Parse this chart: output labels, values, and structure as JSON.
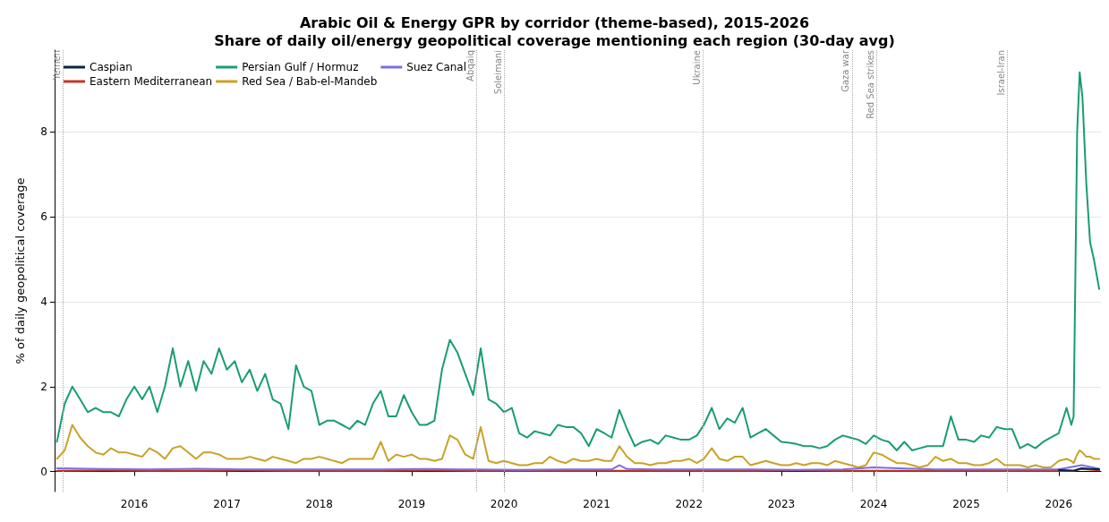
{
  "chart_data": {
    "type": "line",
    "title": "Arabic Oil & Energy GPR by corridor (theme-based), 2015-2026",
    "subtitle": "Share of daily oil/energy geopolitical coverage mentioning each region (30-day avg)",
    "ylabel": "% of daily geopolitical coverage",
    "x": [
      "2015-03",
      "2015-04",
      "2015-05",
      "2015-06",
      "2015-07",
      "2015-08",
      "2015-09",
      "2015-10",
      "2015-11",
      "2015-12",
      "2016-01",
      "2016-02",
      "2016-03",
      "2016-04",
      "2016-05",
      "2016-06",
      "2016-07",
      "2016-08",
      "2016-09",
      "2016-10",
      "2016-11",
      "2016-12",
      "2017-01",
      "2017-02",
      "2017-03",
      "2017-04",
      "2017-05",
      "2017-06",
      "2017-07",
      "2017-08",
      "2017-09",
      "2017-10",
      "2017-11",
      "2017-12",
      "2018-01",
      "2018-02",
      "2018-03",
      "2018-04",
      "2018-05",
      "2018-06",
      "2018-07",
      "2018-08",
      "2018-09",
      "2018-10",
      "2018-11",
      "2018-12",
      "2019-01",
      "2019-02",
      "2019-03",
      "2019-04",
      "2019-05",
      "2019-06",
      "2019-07",
      "2019-08",
      "2019-09",
      "2019-10",
      "2019-11",
      "2019-12",
      "2020-01",
      "2020-02",
      "2020-03",
      "2020-04",
      "2020-05",
      "2020-06",
      "2020-07",
      "2020-08",
      "2020-09",
      "2020-10",
      "2020-11",
      "2020-12",
      "2021-01",
      "2021-02",
      "2021-03",
      "2021-04",
      "2021-05",
      "2021-06",
      "2021-07",
      "2021-08",
      "2021-09",
      "2021-10",
      "2021-11",
      "2021-12",
      "2022-01",
      "2022-02",
      "2022-03",
      "2022-04",
      "2022-05",
      "2022-06",
      "2022-07",
      "2022-08",
      "2022-09",
      "2022-10",
      "2022-11",
      "2022-12",
      "2023-01",
      "2023-02",
      "2023-03",
      "2023-04",
      "2023-05",
      "2023-06",
      "2023-07",
      "2023-08",
      "2023-09",
      "2023-10",
      "2023-11",
      "2023-12",
      "2024-01",
      "2024-02",
      "2024-03",
      "2024-04",
      "2024-05",
      "2024-06",
      "2024-07",
      "2024-08",
      "2024-09",
      "2024-10",
      "2024-11",
      "2024-12",
      "2025-01",
      "2025-02",
      "2025-03",
      "2025-04",
      "2025-05",
      "2025-06",
      "2025-07",
      "2025-08",
      "2025-09",
      "2025-10",
      "2025-11",
      "2025-12",
      "2026-01",
      "2026-02-01",
      "2026-02-20",
      "2026-03-01",
      "2026-03-15",
      "2026-03-25",
      "2026-04-05",
      "2026-04-20",
      "2026-05-05",
      "2026-05-20",
      "2026-06-10"
    ],
    "xlim": [
      "2015-02-20",
      "2026-06-17"
    ],
    "xticks": [
      "2016",
      "2017",
      "2018",
      "2019",
      "2020",
      "2021",
      "2022",
      "2023",
      "2024",
      "2025",
      "2026"
    ],
    "ylim": [
      -0.47,
      9.92
    ],
    "yticks": [
      0,
      2,
      4,
      6,
      8
    ],
    "grid": "y",
    "legend": "top left",
    "marker": "none",
    "line_style": "solid",
    "series": [
      {
        "name": "Caspian",
        "color": "#0b2545",
        "x": [
          "2026-01",
          "2026-03",
          "2026-04",
          "2026-06-10"
        ],
        "values": [
          0.04,
          0.02,
          0.08,
          0.05
        ]
      },
      {
        "name": "Eastern Mediterranean",
        "color": "#c0392b",
        "x": [
          "2015-03",
          "2015-09",
          "2016-03",
          "2016-09",
          "2017-03",
          "2017-09",
          "2018-03",
          "2018-09",
          "2019-03",
          "2019-09",
          "2020-03",
          "2020-09",
          "2021-03",
          "2021-09",
          "2022-03",
          "2022-09",
          "2023-03",
          "2023-09",
          "2024-03",
          "2024-09",
          "2025-03",
          "2025-09",
          "2026-01",
          "2026-03",
          "2026-04",
          "2026-06-10"
        ],
        "values": [
          0.02,
          0.03,
          0.02,
          0.02,
          0.03,
          0.02,
          0.02,
          0.02,
          0.03,
          0.02,
          0.02,
          0.02,
          0.02,
          0.02,
          0.02,
          0.02,
          0.03,
          0.02,
          0.02,
          0.02,
          0.02,
          0.02,
          0.02,
          0.02,
          0.06,
          0.03
        ]
      },
      {
        "name": "Persian Gulf / Hormuz",
        "color": "#1a9c73",
        "values": [
          0.7,
          1.6,
          2.0,
          1.7,
          1.4,
          1.5,
          1.4,
          1.4,
          1.3,
          1.7,
          2.0,
          1.7,
          2.0,
          1.4,
          2.0,
          2.9,
          2.0,
          2.6,
          1.9,
          2.6,
          2.3,
          2.9,
          2.4,
          2.6,
          2.1,
          2.4,
          1.9,
          2.3,
          1.7,
          1.6,
          1.0,
          2.5,
          2.0,
          1.9,
          1.1,
          1.2,
          1.2,
          1.1,
          1.0,
          1.2,
          1.1,
          1.6,
          1.9,
          1.3,
          1.3,
          1.8,
          1.4,
          1.1,
          1.1,
          1.2,
          2.4,
          3.1,
          2.8,
          2.3,
          1.8,
          2.9,
          1.7,
          1.6,
          1.4,
          1.5,
          0.9,
          0.8,
          0.95,
          0.9,
          0.85,
          1.1,
          1.05,
          1.05,
          0.9,
          0.6,
          1.0,
          0.9,
          0.8,
          1.45,
          1.0,
          0.6,
          0.7,
          0.75,
          0.65,
          0.85,
          0.8,
          0.75,
          0.75,
          0.85,
          1.1,
          1.5,
          1.0,
          1.25,
          1.15,
          1.5,
          0.8,
          0.9,
          1.0,
          0.85,
          0.7,
          0.68,
          0.65,
          0.6,
          0.6,
          0.55,
          0.6,
          0.75,
          0.85,
          0.8,
          0.75,
          0.65,
          0.85,
          0.75,
          0.7,
          0.5,
          0.7,
          0.5,
          0.55,
          0.6,
          0.6,
          0.6,
          1.3,
          0.75,
          0.75,
          0.7,
          0.85,
          0.8,
          1.05,
          1.0,
          1.0,
          0.55,
          0.65,
          0.55,
          0.7,
          0.8,
          0.9,
          1.5,
          1.1,
          1.3,
          8.0,
          9.4,
          8.8,
          6.8,
          5.4,
          5.0,
          4.3
        ]
      },
      {
        "name": "Red Sea / Bab-el-Mandeb",
        "color": "#c9a227",
        "values": [
          0.3,
          0.5,
          1.1,
          0.8,
          0.6,
          0.45,
          0.4,
          0.55,
          0.45,
          0.45,
          0.4,
          0.35,
          0.55,
          0.45,
          0.3,
          0.55,
          0.6,
          0.45,
          0.3,
          0.45,
          0.45,
          0.4,
          0.3,
          0.3,
          0.3,
          0.35,
          0.3,
          0.25,
          0.35,
          0.3,
          0.25,
          0.2,
          0.3,
          0.3,
          0.35,
          0.3,
          0.25,
          0.2,
          0.3,
          0.3,
          0.3,
          0.3,
          0.7,
          0.25,
          0.4,
          0.35,
          0.4,
          0.3,
          0.3,
          0.25,
          0.3,
          0.85,
          0.75,
          0.4,
          0.3,
          1.05,
          0.25,
          0.2,
          0.25,
          0.2,
          0.15,
          0.15,
          0.2,
          0.2,
          0.35,
          0.25,
          0.2,
          0.3,
          0.25,
          0.25,
          0.3,
          0.25,
          0.25,
          0.6,
          0.35,
          0.2,
          0.2,
          0.15,
          0.2,
          0.2,
          0.25,
          0.25,
          0.3,
          0.2,
          0.3,
          0.55,
          0.3,
          0.25,
          0.35,
          0.35,
          0.15,
          0.2,
          0.25,
          0.2,
          0.15,
          0.15,
          0.2,
          0.15,
          0.2,
          0.2,
          0.15,
          0.25,
          0.2,
          0.15,
          0.1,
          0.15,
          0.45,
          0.4,
          0.3,
          0.2,
          0.2,
          0.15,
          0.1,
          0.15,
          0.35,
          0.25,
          0.3,
          0.2,
          0.2,
          0.15,
          0.15,
          0.2,
          0.3,
          0.15,
          0.15,
          0.15,
          0.1,
          0.15,
          0.1,
          0.1,
          0.25,
          0.3,
          0.25,
          0.2,
          0.4,
          0.5,
          0.45,
          0.35,
          0.35,
          0.3,
          0.3
        ]
      },
      {
        "name": "Suez Canal",
        "color": "#7b6fe0",
        "x": [
          "2015-03",
          "2015-09",
          "2016-03",
          "2016-09",
          "2017-03",
          "2017-09",
          "2018-03",
          "2018-09",
          "2019-03",
          "2019-09",
          "2020-03",
          "2020-09",
          "2021-03",
          "2021-04",
          "2021-05",
          "2021-09",
          "2022-03",
          "2022-09",
          "2023-03",
          "2023-09",
          "2024-01",
          "2024-09",
          "2025-03",
          "2025-09",
          "2026-01",
          "2026-04",
          "2026-06-10"
        ],
        "values": [
          0.08,
          0.06,
          0.05,
          0.07,
          0.05,
          0.05,
          0.05,
          0.05,
          0.06,
          0.05,
          0.04,
          0.05,
          0.05,
          0.15,
          0.06,
          0.05,
          0.05,
          0.05,
          0.04,
          0.05,
          0.1,
          0.05,
          0.05,
          0.05,
          0.05,
          0.15,
          0.07
        ]
      }
    ],
    "ref_lines": [
      {
        "axis": "x",
        "value": "2015-03-26",
        "label": "Yemen"
      },
      {
        "axis": "x",
        "value": "2019-09-14",
        "label": "Abqaiq"
      },
      {
        "axis": "x",
        "value": "2020-01-03",
        "label": "Soleimani"
      },
      {
        "axis": "x",
        "value": "2022-02-24",
        "label": "Ukraine"
      },
      {
        "axis": "x",
        "value": "2023-10-07",
        "label": "Gaza war"
      },
      {
        "axis": "x",
        "value": "2024-01-12",
        "label": "Red Sea strikes"
      },
      {
        "axis": "x",
        "value": "2025-06-13",
        "label": "Israel-Iran"
      }
    ]
  }
}
